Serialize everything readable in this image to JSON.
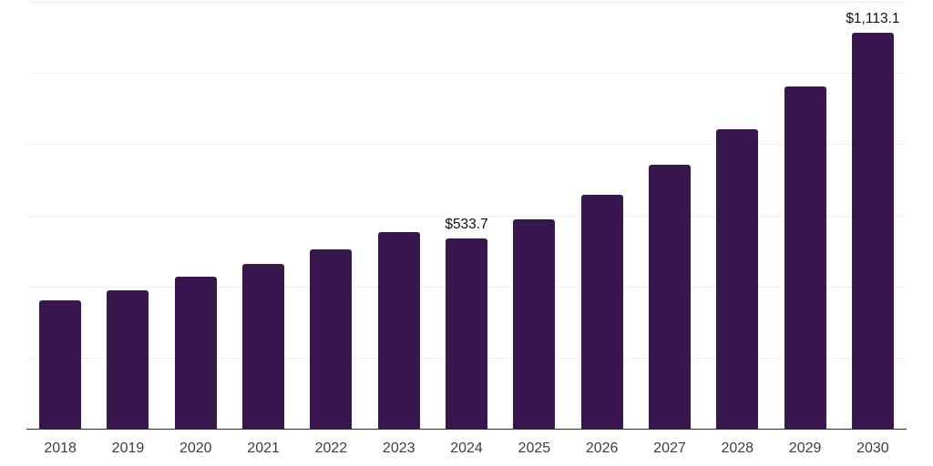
{
  "chart_data": {
    "type": "bar",
    "title": "",
    "xlabel": "",
    "ylabel": "",
    "categories": [
      "2018",
      "2019",
      "2020",
      "2021",
      "2022",
      "2023",
      "2024",
      "2025",
      "2026",
      "2027",
      "2028",
      "2029",
      "2030"
    ],
    "values": [
      360,
      390,
      427,
      464,
      504,
      553,
      533.7,
      589,
      658,
      743,
      842,
      962,
      1113.1
    ],
    "data_labels": [
      "",
      "",
      "",
      "",
      "",
      "",
      "$533.7",
      "",
      "",
      "",
      "",
      "",
      "$1,113.1"
    ],
    "ylim": [
      0,
      1200
    ],
    "gridline_step": 200,
    "grid": "horizontal-only",
    "legend": "none",
    "bar_color": "#38164e",
    "axis_line_color": "#2d2d2d",
    "gridline_color": "#f1f1f1",
    "tick_label_color": "#3d3d3d",
    "value_label_color": "#111111"
  }
}
